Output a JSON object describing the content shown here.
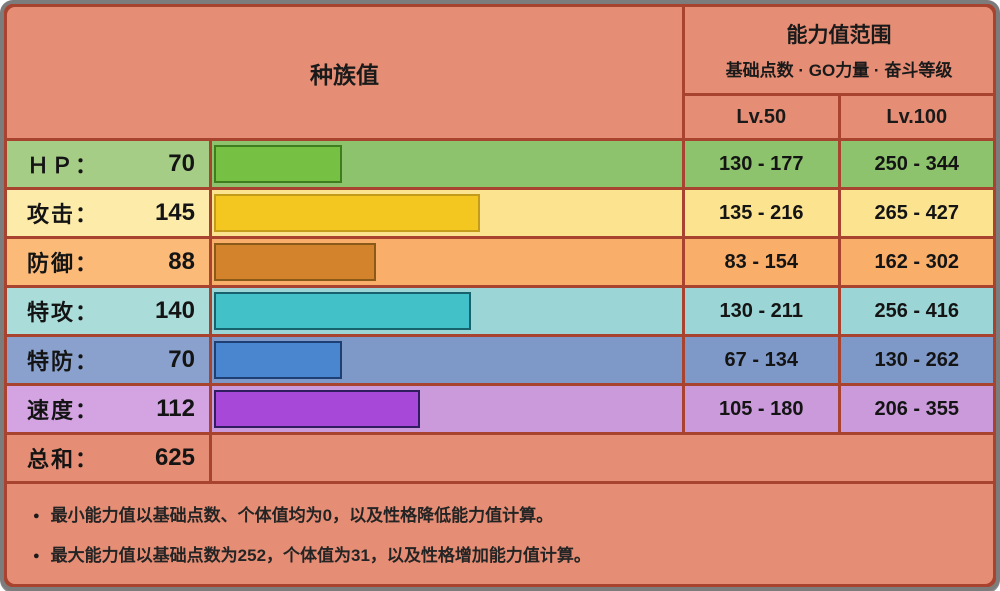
{
  "table": {
    "max_stat": 255,
    "header": {
      "base_stats_label": "种族值",
      "range_title": "能力值范围",
      "range_subtitle": "基础点数 · GO力量 · 奋斗等级",
      "lv50_label": "Lv.50",
      "lv100_label": "Lv.100"
    },
    "stats": [
      {
        "label": "ＨＰ：",
        "value": 70,
        "lv50": "130 - 177",
        "lv100": "250 - 344",
        "label_bg": "#a6cd85",
        "cell_bg": "#8dc36c",
        "bar_color": "#76c143",
        "bar_border": "#3f7e1f"
      },
      {
        "label": "攻击：",
        "value": 145,
        "lv50": "135 - 216",
        "lv100": "265 - 427",
        "label_bg": "#fdeca9",
        "cell_bg": "#fbe38f",
        "bar_color": "#f3c71f",
        "bar_border": "#c49c1b"
      },
      {
        "label": "防御：",
        "value": 88,
        "lv50": "83 - 154",
        "lv100": "162 - 302",
        "label_bg": "#fcba78",
        "cell_bg": "#f9ae6a",
        "bar_color": "#d2832c",
        "bar_border": "#8a5a18"
      },
      {
        "label": "特攻：",
        "value": 140,
        "lv50": "130 - 211",
        "lv100": "256 - 416",
        "label_bg": "#aadcd9",
        "cell_bg": "#9bd5d5",
        "bar_color": "#43c1c9",
        "bar_border": "#17626c"
      },
      {
        "label": "特防：",
        "value": 70,
        "lv50": "67 - 134",
        "lv100": "130 - 262",
        "label_bg": "#8aa0cd",
        "cell_bg": "#7e98c8",
        "bar_color": "#4a85d0",
        "bar_border": "#1e3f74"
      },
      {
        "label": "速度：",
        "value": 112,
        "lv50": "105 - 180",
        "lv100": "206 - 355",
        "label_bg": "#d3a4e1",
        "cell_bg": "#ca9adb",
        "bar_color": "#a748d9",
        "bar_border": "#301d60"
      }
    ],
    "total": {
      "label": "总和：",
      "value": 625
    },
    "notes": [
      "最小能力值以基础点数、个体值均为0，以及性格降低能力值计算。",
      "最大能力值以基础点数为252，个体值为31，以及性格增加能力值计算。"
    ]
  },
  "colors": {
    "grid_line": "#a8432f",
    "frame": "#7c7c7c",
    "header_bg": "#e68e75",
    "text": "#141414"
  },
  "chart_data": {
    "type": "bar",
    "orientation": "horizontal",
    "title": "种族值",
    "categories": [
      "ＨＰ",
      "攻击",
      "防御",
      "特攻",
      "特防",
      "速度"
    ],
    "values": [
      70,
      145,
      88,
      140,
      70,
      112
    ],
    "total": 625,
    "xlabel": "",
    "ylabel": "",
    "xlim": [
      0,
      255
    ],
    "grid": false,
    "legend": false,
    "bar_colors": [
      "#76c143",
      "#f3c71f",
      "#d2832c",
      "#43c1c9",
      "#4a85d0",
      "#a748d9"
    ],
    "series": [
      {
        "name": "Lv.50 范围",
        "values": [
          "130 - 177",
          "135 - 216",
          "83 - 154",
          "130 - 211",
          "67 - 134",
          "105 - 180"
        ]
      },
      {
        "name": "Lv.100 范围",
        "values": [
          "250 - 344",
          "265 - 427",
          "162 - 302",
          "256 - 416",
          "130 - 262",
          "206 - 355"
        ]
      }
    ]
  }
}
